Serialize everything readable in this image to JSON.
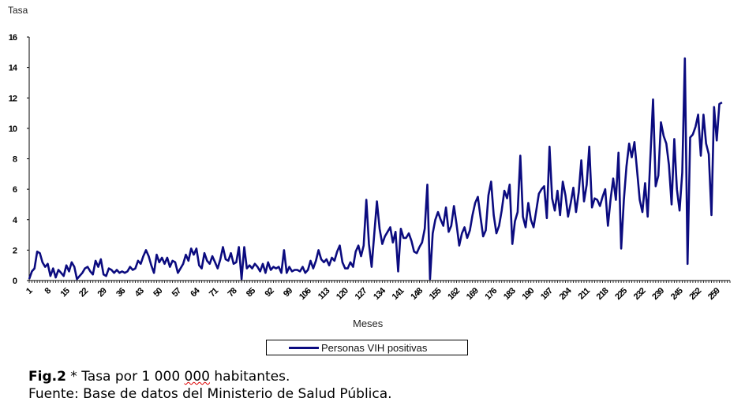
{
  "chart_data": {
    "type": "line",
    "title": "",
    "ylabel": "Tasa",
    "xlabel": "Meses",
    "ylim": [
      0,
      16
    ],
    "yticks": [
      "0",
      "2",
      "4",
      "6",
      "8",
      "10",
      "12",
      "14",
      "16"
    ],
    "xlim": [
      1,
      265
    ],
    "xtick_labels": [
      "1",
      "8",
      "15",
      "22",
      "29",
      "36",
      "43",
      "50",
      "57",
      "64",
      "71",
      "78",
      "85",
      "92",
      "99",
      "106",
      "113",
      "120",
      "127",
      "134",
      "141",
      "148",
      "155",
      "162",
      "169",
      "176",
      "183",
      "190",
      "197",
      "204",
      "211",
      "218",
      "225",
      "232",
      "239",
      "245",
      "252",
      "259"
    ],
    "legend": "bottom",
    "grid": false,
    "series": [
      {
        "name": "Personas VIH positivas",
        "color": "#0b0b7f",
        "values": [
          0.1,
          0.6,
          0.8,
          1.9,
          1.8,
          1.2,
          0.9,
          1.1,
          0.3,
          0.8,
          0.2,
          0.7,
          0.5,
          0.3,
          1.0,
          0.6,
          1.2,
          0.9,
          0.1,
          0.3,
          0.5,
          0.8,
          0.9,
          0.6,
          0.4,
          1.3,
          0.9,
          1.4,
          0.4,
          0.3,
          0.8,
          0.7,
          0.5,
          0.7,
          0.5,
          0.6,
          0.5,
          0.6,
          0.9,
          0.7,
          0.8,
          1.3,
          1.1,
          1.6,
          2.0,
          1.6,
          1.0,
          0.5,
          1.7,
          1.2,
          1.5,
          1.1,
          1.5,
          0.9,
          1.3,
          1.2,
          0.5,
          0.8,
          1.1,
          1.7,
          1.3,
          2.1,
          1.7,
          2.1,
          1.0,
          0.8,
          1.8,
          1.3,
          1.1,
          1.6,
          1.2,
          0.8,
          1.4,
          2.2,
          1.4,
          1.3,
          1.8,
          1.1,
          1.2,
          2.2,
          0.1,
          2.2,
          0.8,
          1.0,
          0.8,
          1.1,
          0.9,
          0.6,
          1.1,
          0.5,
          1.2,
          0.7,
          0.9,
          0.8,
          0.9,
          0.5,
          2.0,
          0.5,
          0.9,
          0.6,
          0.7,
          0.7,
          0.6,
          0.9,
          0.5,
          0.7,
          1.3,
          0.8,
          1.3,
          2.0,
          1.4,
          1.2,
          1.4,
          1.0,
          1.5,
          1.3,
          1.9,
          2.3,
          1.2,
          0.8,
          0.8,
          1.2,
          0.9,
          1.9,
          2.3,
          1.6,
          2.3,
          5.3,
          2.4,
          0.9,
          3.1,
          5.2,
          3.4,
          2.4,
          2.9,
          3.2,
          3.5,
          2.5,
          3.2,
          0.6,
          3.4,
          2.8,
          2.8,
          3.1,
          2.6,
          1.9,
          1.8,
          2.2,
          2.5,
          3.4,
          6.3,
          0.1,
          3.1,
          4.0,
          4.5,
          4.0,
          3.6,
          4.8,
          3.2,
          3.6,
          4.9,
          3.7,
          2.3,
          3.1,
          3.5,
          2.8,
          3.3,
          4.3,
          5.1,
          5.5,
          4.2,
          2.9,
          3.3,
          5.6,
          6.5,
          4.3,
          3.1,
          3.6,
          4.6,
          5.9,
          5.4,
          6.3,
          2.4,
          3.9,
          4.5,
          8.2,
          4.2,
          3.5,
          5.1,
          4.0,
          3.5,
          4.6,
          5.7,
          6.0,
          6.2,
          4.1,
          8.8,
          5.4,
          4.6,
          5.9,
          4.3,
          6.5,
          5.6,
          4.2,
          5.1,
          6.1,
          4.5,
          5.8,
          7.9,
          5.2,
          6.3,
          8.8,
          4.8,
          5.4,
          5.3,
          4.9,
          5.5,
          6.0,
          3.6,
          5.3,
          6.7,
          5.3,
          8.4,
          2.1,
          5.3,
          7.5,
          9.0,
          8.1,
          9.1,
          7.2,
          5.3,
          4.5,
          6.4,
          4.2,
          8.1,
          11.9,
          6.2,
          6.9,
          10.4,
          9.5,
          9.0,
          7.6,
          5.0,
          9.3,
          6.0,
          4.6,
          7.1,
          14.6,
          1.1,
          9.4,
          9.6,
          10.1,
          10.9,
          8.2,
          10.9,
          9.0,
          8.3,
          4.3,
          11.4,
          9.2,
          11.6,
          11.7
        ]
      }
    ]
  },
  "caption": {
    "fig_label": "Fig.2",
    "line1_rest": " * Tasa por 1 000 ",
    "line1_underlined": "000",
    "line1_end": " habitantes.",
    "line2": "Fuente: Base de datos del Ministerio de Salud Pública."
  }
}
